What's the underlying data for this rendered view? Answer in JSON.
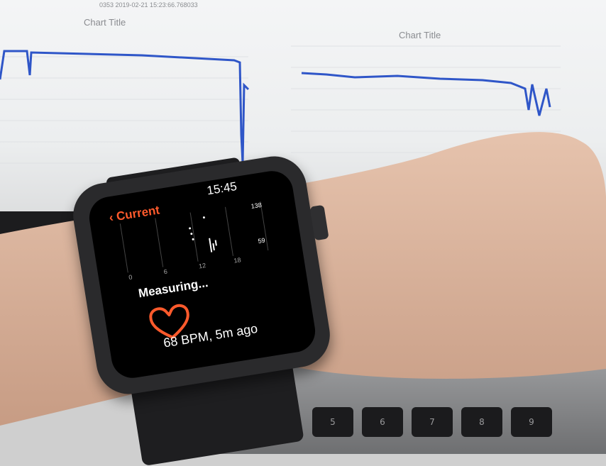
{
  "monitor": {
    "chart_left_title": "Chart Title",
    "chart_right_title": "Chart Title",
    "header_text": "0353  2019-02-21  15:23:66.768033"
  },
  "watch": {
    "back_label": "Current",
    "time": "15:45",
    "chart": {
      "x_ticks": [
        "0",
        "6",
        "12",
        "18"
      ],
      "y_max": "138",
      "y_min": "59"
    },
    "status": "Measuring...",
    "reading": "68 BPM, 5m ago",
    "accent_color": "#ff5a2c",
    "heart_icon": "heart-outline-icon"
  },
  "keyboard": {
    "keys": [
      "5",
      "6",
      "7",
      "8",
      "9"
    ]
  }
}
